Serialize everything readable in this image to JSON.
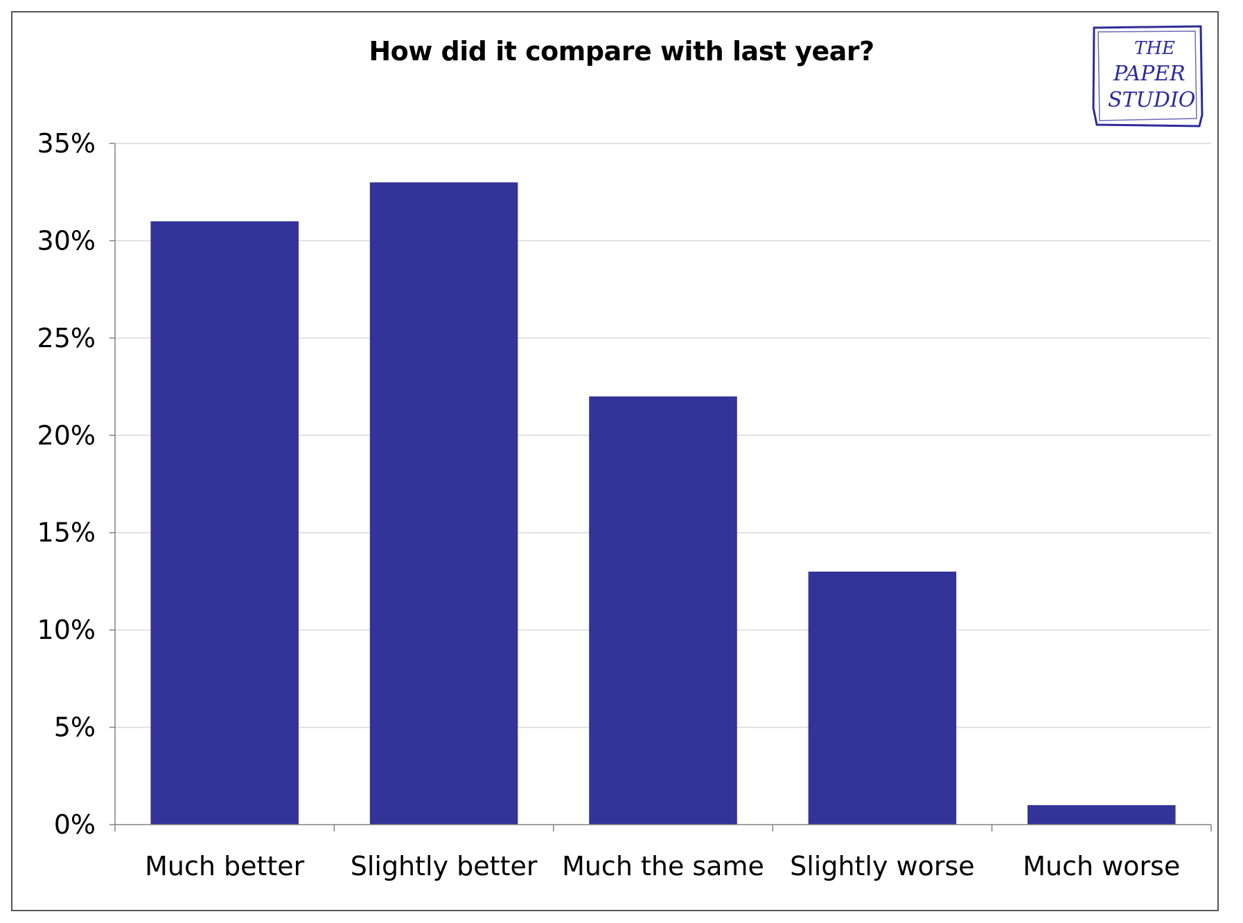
{
  "chart_data": {
    "type": "bar",
    "title": "How did it compare with last year?",
    "categories": [
      "Much better",
      "Slightly better",
      "Much the same",
      "Slightly worse",
      "Much worse"
    ],
    "values": [
      31,
      33,
      22,
      13,
      1
    ],
    "value_unit": "%",
    "ylim": [
      0,
      35
    ],
    "yticks": [
      "0%",
      "5%",
      "10%",
      "15%",
      "20%",
      "25%",
      "30%",
      "35%"
    ],
    "ytick_values": [
      0,
      5,
      10,
      15,
      20,
      25,
      30,
      35
    ],
    "grid": true,
    "bar_color": "#333399",
    "grid_color": "#d9d9d9",
    "axis_color": "#808080"
  },
  "logo": {
    "text_lines": [
      "THE",
      "PAPER",
      "STUDIO"
    ],
    "color": "#2b2b9a"
  }
}
